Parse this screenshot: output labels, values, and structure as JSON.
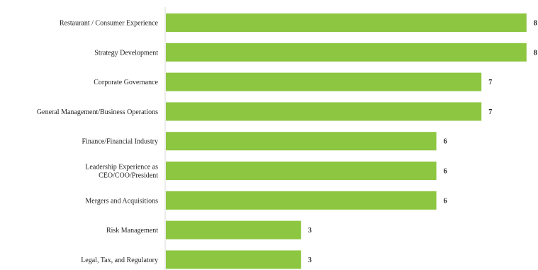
{
  "chart_data": {
    "type": "bar",
    "orientation": "horizontal",
    "categories": [
      "Restaurant / Consumer Experience",
      "Strategy Development",
      "Corporate Governance",
      "General Management/Business Operations",
      "Finance/Financial Industry",
      "Leadership Experience as CEO/COO/President",
      "Mergers and Acquisitions",
      "Risk Management",
      "Legal, Tax, and Regulatory"
    ],
    "category_lines": [
      [
        "Restaurant / Consumer Experience"
      ],
      [
        "Strategy Development"
      ],
      [
        "Corporate Governance"
      ],
      [
        "General Management/Business Operations"
      ],
      [
        "Finance/Financial Industry"
      ],
      [
        "Leadership Experience as",
        "CEO/COO/President"
      ],
      [
        "Mergers and Acquisitions"
      ],
      [
        "Risk Management"
      ],
      [
        "Legal, Tax, and Regulatory"
      ]
    ],
    "values": [
      8,
      8,
      7,
      7,
      6,
      6,
      6,
      3,
      3
    ],
    "xlim": [
      0,
      8
    ],
    "grid": false,
    "bar_color": "#8dc640",
    "axis_color": "#d9d9d9",
    "title": "",
    "xlabel": "",
    "ylabel": ""
  }
}
